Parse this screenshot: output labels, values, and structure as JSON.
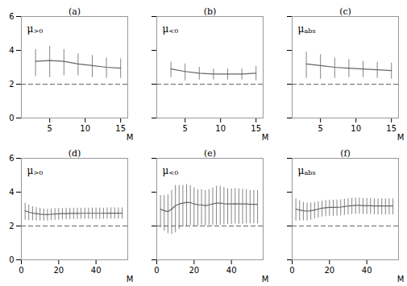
{
  "chart_data": [
    {
      "type": "line",
      "title": "(a)",
      "xlabel": "M",
      "color": "#666666",
      "annotations": [
        {
          "text": "μ",
          "subscript": ">0"
        }
      ],
      "x": [
        3,
        5,
        7,
        9,
        11,
        13,
        15
      ],
      "values": [
        3.35,
        3.4,
        3.35,
        3.2,
        3.1,
        3.0,
        2.95
      ],
      "yerr_low": [
        0.9,
        1.0,
        0.85,
        0.7,
        0.7,
        0.65,
        0.6
      ],
      "yerr_high": [
        0.7,
        0.85,
        0.7,
        0.6,
        0.6,
        0.55,
        0.55
      ],
      "reference_y": 2.0,
      "xlim": [
        1,
        16
      ],
      "xticks": [
        5,
        10,
        15
      ],
      "ylim": [
        0,
        6
      ],
      "yticks": [
        0,
        2,
        4,
        6
      ]
    },
    {
      "type": "line",
      "title": "(b)",
      "xlabel": "M",
      "color": "#666666",
      "annotations": [
        {
          "text": "μ",
          "subscript": "<0"
        }
      ],
      "x": [
        3,
        5,
        7,
        9,
        11,
        13,
        15
      ],
      "values": [
        2.9,
        2.75,
        2.65,
        2.6,
        2.6,
        2.6,
        2.65
      ],
      "yerr_low": [
        0.5,
        0.55,
        0.4,
        0.35,
        0.35,
        0.35,
        0.45
      ],
      "yerr_high": [
        0.4,
        0.45,
        0.35,
        0.3,
        0.3,
        0.3,
        0.4
      ],
      "reference_y": 2.0,
      "xlim": [
        1,
        16
      ],
      "xticks": [
        5,
        10,
        15
      ],
      "ylim": [
        0,
        6
      ],
      "yticks": [
        0,
        2,
        4,
        6
      ],
      "tick_labels": "x"
    },
    {
      "type": "line",
      "title": "(c)",
      "xlabel": "M",
      "color": "#666666",
      "annotations": [
        {
          "text": "μ",
          "subscript": "abs"
        }
      ],
      "x": [
        3,
        5,
        7,
        9,
        11,
        13,
        15
      ],
      "values": [
        3.2,
        3.1,
        3.0,
        2.95,
        2.9,
        2.85,
        2.8
      ],
      "yerr_low": [
        0.85,
        0.8,
        0.65,
        0.55,
        0.5,
        0.5,
        0.5
      ],
      "yerr_high": [
        0.7,
        0.65,
        0.55,
        0.5,
        0.45,
        0.45,
        0.45
      ],
      "reference_y": 2.0,
      "xlim": [
        1,
        16
      ],
      "xticks": [
        5,
        10,
        15
      ],
      "ylim": [
        0,
        6
      ],
      "yticks": [
        0,
        2,
        4,
        6
      ],
      "tick_labels": "x"
    },
    {
      "type": "line",
      "title": "(d)",
      "xlabel": "M",
      "color": "#666666",
      "annotations": [
        {
          "text": "μ",
          "subscript": ">0"
        }
      ],
      "x": [
        2,
        4,
        6,
        8,
        10,
        12,
        14,
        16,
        18,
        20,
        22,
        24,
        26,
        28,
        30,
        32,
        34,
        36,
        38,
        40,
        42,
        44,
        46,
        48,
        50,
        52,
        54
      ],
      "values": [
        2.9,
        2.82,
        2.76,
        2.73,
        2.7,
        2.68,
        2.67,
        2.69,
        2.71,
        2.72,
        2.73,
        2.73,
        2.74,
        2.74,
        2.74,
        2.75,
        2.75,
        2.75,
        2.75,
        2.75,
        2.75,
        2.75,
        2.76,
        2.76,
        2.76,
        2.76,
        2.76
      ],
      "yerr_low": [
        0.55,
        0.5,
        0.45,
        0.42,
        0.4,
        0.38,
        0.37,
        0.37,
        0.37,
        0.37,
        0.36,
        0.36,
        0.36,
        0.35,
        0.35,
        0.35,
        0.35,
        0.35,
        0.35,
        0.35,
        0.35,
        0.35,
        0.35,
        0.35,
        0.35,
        0.35,
        0.35
      ],
      "yerr_high": [
        0.45,
        0.42,
        0.38,
        0.36,
        0.35,
        0.33,
        0.32,
        0.32,
        0.32,
        0.32,
        0.31,
        0.31,
        0.31,
        0.31,
        0.31,
        0.31,
        0.31,
        0.31,
        0.31,
        0.31,
        0.31,
        0.31,
        0.31,
        0.31,
        0.31,
        0.31,
        0.31
      ],
      "reference_y": 2.0,
      "xlim": [
        0,
        57
      ],
      "xticks": [
        0,
        20,
        40
      ],
      "ylim": [
        0,
        6
      ],
      "yticks": [
        0,
        2,
        4,
        6
      ]
    },
    {
      "type": "line",
      "title": "(e)",
      "xlabel": "M",
      "color": "#666666",
      "annotations": [
        {
          "text": "μ",
          "subscript": "<0"
        }
      ],
      "x": [
        2,
        4,
        6,
        8,
        10,
        12,
        14,
        16,
        18,
        20,
        22,
        24,
        26,
        28,
        30,
        32,
        34,
        36,
        38,
        40,
        42,
        44,
        46,
        48,
        50,
        52,
        54
      ],
      "values": [
        3.0,
        2.9,
        2.85,
        3.0,
        3.2,
        3.3,
        3.35,
        3.4,
        3.38,
        3.3,
        3.25,
        3.25,
        3.2,
        3.25,
        3.3,
        3.35,
        3.35,
        3.32,
        3.3,
        3.3,
        3.32,
        3.3,
        3.3,
        3.3,
        3.28,
        3.28,
        3.28
      ],
      "yerr_low": [
        1.1,
        1.2,
        1.3,
        1.5,
        1.6,
        1.5,
        1.4,
        1.4,
        1.35,
        1.3,
        1.25,
        1.2,
        1.2,
        1.2,
        1.25,
        1.3,
        1.3,
        1.25,
        1.2,
        1.2,
        1.2,
        1.2,
        1.2,
        1.18,
        1.15,
        1.15,
        1.15
      ],
      "yerr_high": [
        0.8,
        0.9,
        1.0,
        1.1,
        1.2,
        1.1,
        1.05,
        1.05,
        1.0,
        0.95,
        0.9,
        0.9,
        0.9,
        0.9,
        0.95,
        1.0,
        1.0,
        0.95,
        0.9,
        0.9,
        0.9,
        0.9,
        0.88,
        0.85,
        0.83,
        0.82,
        0.82
      ],
      "reference_y": 2.0,
      "xlim": [
        0,
        57
      ],
      "xticks": [
        0,
        20,
        40
      ],
      "ylim": [
        0,
        6
      ],
      "yticks": [
        0,
        2,
        4,
        6
      ],
      "tick_labels": "x"
    },
    {
      "type": "line",
      "title": "(f)",
      "xlabel": "M",
      "color": "#666666",
      "annotations": [
        {
          "text": "μ",
          "subscript": "abs"
        }
      ],
      "x": [
        2,
        4,
        6,
        8,
        10,
        12,
        14,
        16,
        18,
        20,
        22,
        24,
        26,
        28,
        30,
        32,
        34,
        36,
        38,
        40,
        42,
        44,
        46,
        48,
        50,
        52,
        54
      ],
      "values": [
        3.0,
        2.95,
        2.9,
        2.88,
        2.9,
        2.95,
        3.0,
        3.05,
        3.08,
        3.1,
        3.1,
        3.1,
        3.12,
        3.15,
        3.18,
        3.2,
        3.22,
        3.22,
        3.2,
        3.2,
        3.2,
        3.18,
        3.18,
        3.18,
        3.18,
        3.18,
        3.18
      ],
      "yerr_low": [
        0.7,
        0.65,
        0.6,
        0.58,
        0.55,
        0.53,
        0.52,
        0.52,
        0.52,
        0.52,
        0.52,
        0.52,
        0.52,
        0.52,
        0.52,
        0.52,
        0.52,
        0.52,
        0.52,
        0.52,
        0.52,
        0.52,
        0.52,
        0.52,
        0.52,
        0.52,
        0.52
      ],
      "yerr_high": [
        0.6,
        0.55,
        0.5,
        0.48,
        0.46,
        0.44,
        0.43,
        0.43,
        0.43,
        0.43,
        0.43,
        0.43,
        0.43,
        0.43,
        0.43,
        0.43,
        0.43,
        0.43,
        0.43,
        0.43,
        0.43,
        0.43,
        0.43,
        0.43,
        0.43,
        0.43,
        0.43
      ],
      "reference_y": 2.0,
      "xlim": [
        0,
        57
      ],
      "xticks": [
        0,
        20,
        40
      ],
      "ylim": [
        0,
        6
      ],
      "yticks": [
        0,
        2,
        4,
        6
      ],
      "tick_labels": "x"
    }
  ]
}
